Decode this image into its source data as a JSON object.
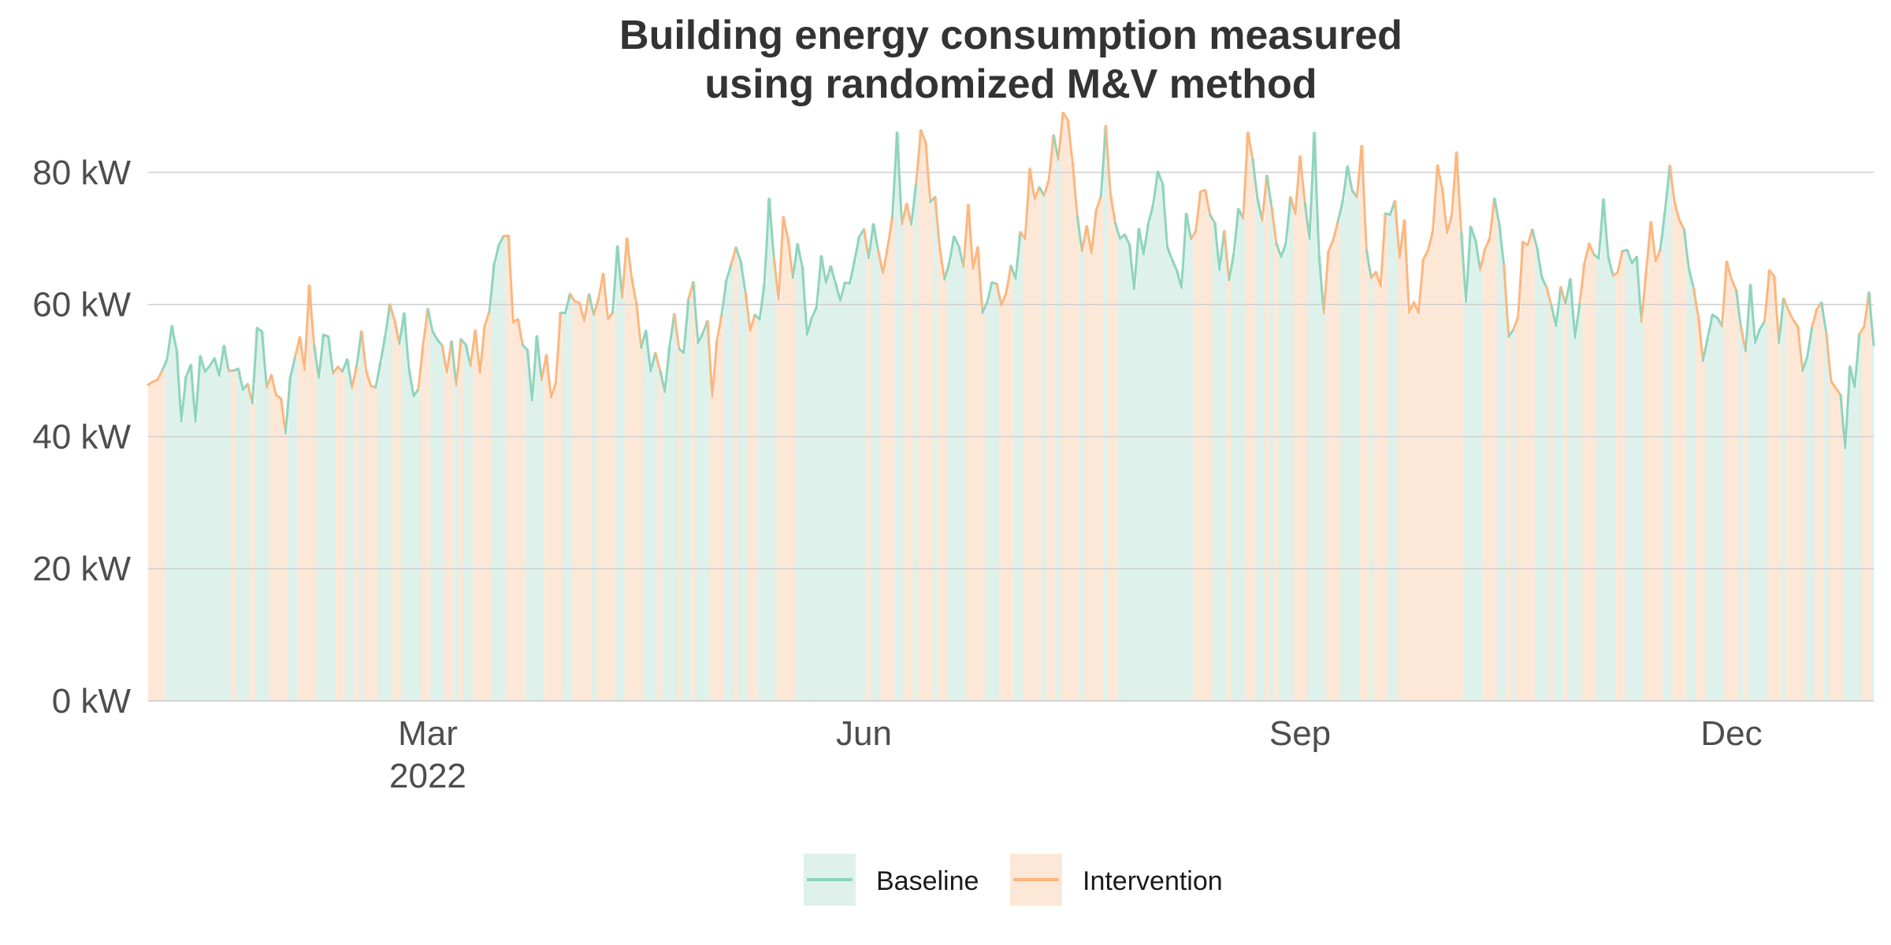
{
  "chart_data": {
    "type": "line",
    "title": [
      "Building energy consumption measured",
      "using randomized M&V method"
    ],
    "xlabel": "",
    "ylabel": "",
    "x_range": [
      "2022-01-01",
      "2022-12-31"
    ],
    "x_ticks": [
      {
        "date": "2022-03-01",
        "label": "Mar",
        "sublabel": "2022"
      },
      {
        "date": "2022-06-01",
        "label": "Jun",
        "sublabel": ""
      },
      {
        "date": "2022-09-01",
        "label": "Sep",
        "sublabel": ""
      },
      {
        "date": "2022-12-01",
        "label": "Dec",
        "sublabel": ""
      }
    ],
    "ylim": [
      0,
      90
    ],
    "y_ticks": [
      {
        "value": 0,
        "label": "0 kW"
      },
      {
        "value": 20,
        "label": "20 kW"
      },
      {
        "value": 40,
        "label": "40 kW"
      },
      {
        "value": 60,
        "label": "60 kW"
      },
      {
        "value": 80,
        "label": "80 kW"
      }
    ],
    "grid": true,
    "legend": "bottom",
    "series": [
      {
        "name": "Baseline",
        "color": "#8fd4bd",
        "fill": "#def1ea"
      },
      {
        "name": "Intervention",
        "color": "#fbb77f",
        "fill": "#fde8d8"
      }
    ],
    "anchor_points": [
      [
        "2022-01-01",
        50
      ],
      [
        "2022-01-06",
        53
      ],
      [
        "2022-01-11",
        45
      ],
      [
        "2022-01-16",
        57
      ],
      [
        "2022-01-20",
        50
      ],
      [
        "2022-01-25",
        53
      ],
      [
        "2022-01-31",
        46
      ],
      [
        "2022-02-04",
        58
      ],
      [
        "2022-02-09",
        50
      ],
      [
        "2022-02-14",
        54
      ],
      [
        "2022-02-18",
        48
      ],
      [
        "2022-02-22",
        59
      ],
      [
        "2022-02-27",
        50
      ],
      [
        "2022-03-02",
        57
      ],
      [
        "2022-03-06",
        53
      ],
      [
        "2022-03-10",
        49
      ],
      [
        "2022-03-14",
        62
      ],
      [
        "2022-03-18",
        68
      ],
      [
        "2022-03-23",
        50
      ],
      [
        "2022-03-28",
        51
      ],
      [
        "2022-04-01",
        64
      ],
      [
        "2022-04-05",
        55
      ],
      [
        "2022-04-10",
        68
      ],
      [
        "2022-04-15",
        56
      ],
      [
        "2022-04-20",
        48
      ],
      [
        "2022-04-25",
        62
      ],
      [
        "2022-04-30",
        54
      ],
      [
        "2022-05-05",
        68
      ],
      [
        "2022-05-10",
        55
      ],
      [
        "2022-05-15",
        72
      ],
      [
        "2022-05-20",
        60
      ],
      [
        "2022-05-25",
        66
      ],
      [
        "2022-05-30",
        64
      ],
      [
        "2022-06-03",
        74
      ],
      [
        "2022-06-08",
        70
      ],
      [
        "2022-06-13",
        84
      ],
      [
        "2022-06-18",
        63
      ],
      [
        "2022-06-23",
        72
      ],
      [
        "2022-06-28",
        60
      ],
      [
        "2022-07-03",
        70
      ],
      [
        "2022-07-08",
        82
      ],
      [
        "2022-07-13",
        88
      ],
      [
        "2022-07-18",
        70
      ],
      [
        "2022-07-23",
        80
      ],
      [
        "2022-07-28",
        65
      ],
      [
        "2022-08-02",
        77
      ],
      [
        "2022-08-07",
        67
      ],
      [
        "2022-08-12",
        80
      ],
      [
        "2022-08-17",
        63
      ],
      [
        "2022-08-22",
        82
      ],
      [
        "2022-08-27",
        70
      ],
      [
        "2022-09-01",
        80
      ],
      [
        "2022-09-06",
        62
      ],
      [
        "2022-09-11",
        83
      ],
      [
        "2022-09-16",
        68
      ],
      [
        "2022-09-21",
        73
      ],
      [
        "2022-09-26",
        62
      ],
      [
        "2022-10-01",
        82
      ],
      [
        "2022-10-06",
        65
      ],
      [
        "2022-10-11",
        74
      ],
      [
        "2022-10-16",
        60
      ],
      [
        "2022-10-21",
        72
      ],
      [
        "2022-10-26",
        58
      ],
      [
        "2022-10-31",
        66
      ],
      [
        "2022-11-05",
        74
      ],
      [
        "2022-11-10",
        62
      ],
      [
        "2022-11-15",
        70
      ],
      [
        "2022-11-20",
        80
      ],
      [
        "2022-11-25",
        55
      ],
      [
        "2022-11-30",
        62
      ],
      [
        "2022-12-05",
        58
      ],
      [
        "2022-12-10",
        64
      ],
      [
        "2022-12-15",
        54
      ],
      [
        "2022-12-20",
        56
      ],
      [
        "2022-12-25",
        44
      ],
      [
        "2022-12-29",
        60
      ],
      [
        "2022-12-31",
        60
      ]
    ],
    "spikes": [
      [
        "2022-06-08",
        86
      ],
      [
        "2022-07-13",
        89
      ],
      [
        "2022-07-22",
        87
      ],
      [
        "2022-08-21",
        86
      ],
      [
        "2022-09-04",
        86
      ],
      [
        "2022-09-14",
        84
      ],
      [
        "2022-11-18",
        81
      ],
      [
        "2022-02-21",
        60
      ],
      [
        "2022-03-16",
        69
      ],
      [
        "2022-04-12",
        70
      ],
      [
        "2022-05-12",
        76
      ],
      [
        "2022-10-04",
        83
      ]
    ],
    "noise_amplitude": 5
  },
  "legend": {
    "baseline_label": "Baseline",
    "intervention_label": "Intervention"
  }
}
